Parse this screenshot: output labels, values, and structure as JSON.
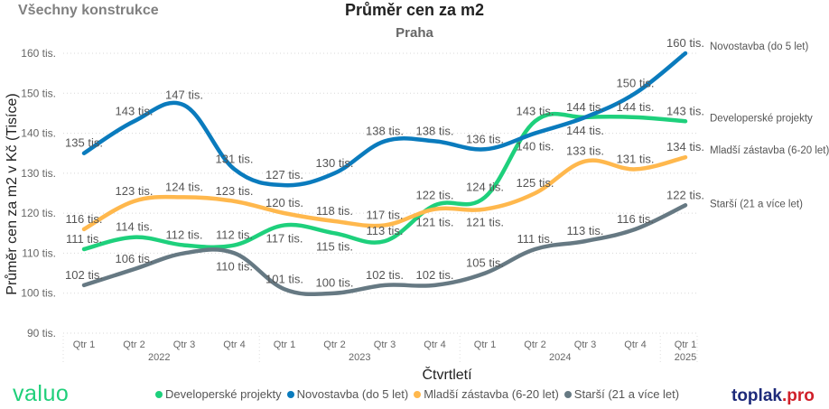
{
  "header": {
    "left_label": "Všechny konstrukce",
    "title": "Průměr cen za m2",
    "subtitle": "Praha"
  },
  "logos": {
    "left": "valuo",
    "right_main": "toplak",
    "right_suffix": ".pro"
  },
  "colors": {
    "dev": "#1ed07c",
    "novo": "#0a7bbd",
    "mladsi": "#ffb84d",
    "starsi": "#667983"
  },
  "chart_data": {
    "type": "line",
    "title": "Průměr cen za m2",
    "subtitle": "Praha",
    "xlabel": "Čtvrtletí",
    "ylabel": "Průměr cen za m2 v Kč (Tisíce)",
    "ylim": [
      90,
      160
    ],
    "yticks": [
      90,
      100,
      110,
      120,
      130,
      140,
      150,
      160
    ],
    "ytick_suffix": " tis.",
    "grid": true,
    "legend_placement": "bottom",
    "x": [
      "Qtr 1",
      "Qtr 2",
      "Qtr 3",
      "Qtr 4",
      "Qtr 1",
      "Qtr 2",
      "Qtr 3",
      "Qtr 4",
      "Qtr 1",
      "Qtr 2",
      "Qtr 3",
      "Qtr 4",
      "Qtr 1"
    ],
    "years": [
      {
        "label": "2022",
        "start": 0,
        "end": 3
      },
      {
        "label": "2023",
        "start": 4,
        "end": 7
      },
      {
        "label": "2024",
        "start": 8,
        "end": 11
      },
      {
        "label": "2025",
        "start": 12,
        "end": 12
      }
    ],
    "series": [
      {
        "key": "dev",
        "name": "Developerské projekty",
        "values": [
          111,
          114,
          112,
          112,
          117,
          115,
          113,
          122,
          124,
          143,
          144,
          144,
          143
        ]
      },
      {
        "key": "novo",
        "name": "Novostavba (do 5 let)",
        "values": [
          135,
          143,
          147,
          131,
          127,
          130,
          138,
          138,
          136,
          140,
          144,
          150,
          160
        ]
      },
      {
        "key": "mladsi",
        "name": "Mladší zástavba (6-20 let)",
        "values": [
          116,
          123,
          124,
          123,
          120,
          118,
          117,
          121,
          121,
          125,
          133,
          131,
          134
        ]
      },
      {
        "key": "starsi",
        "name": "Starší (21 a více let)",
        "values": [
          102,
          106,
          110,
          110,
          101,
          100,
          102,
          102,
          105,
          111,
          113,
          116,
          122
        ]
      }
    ]
  }
}
